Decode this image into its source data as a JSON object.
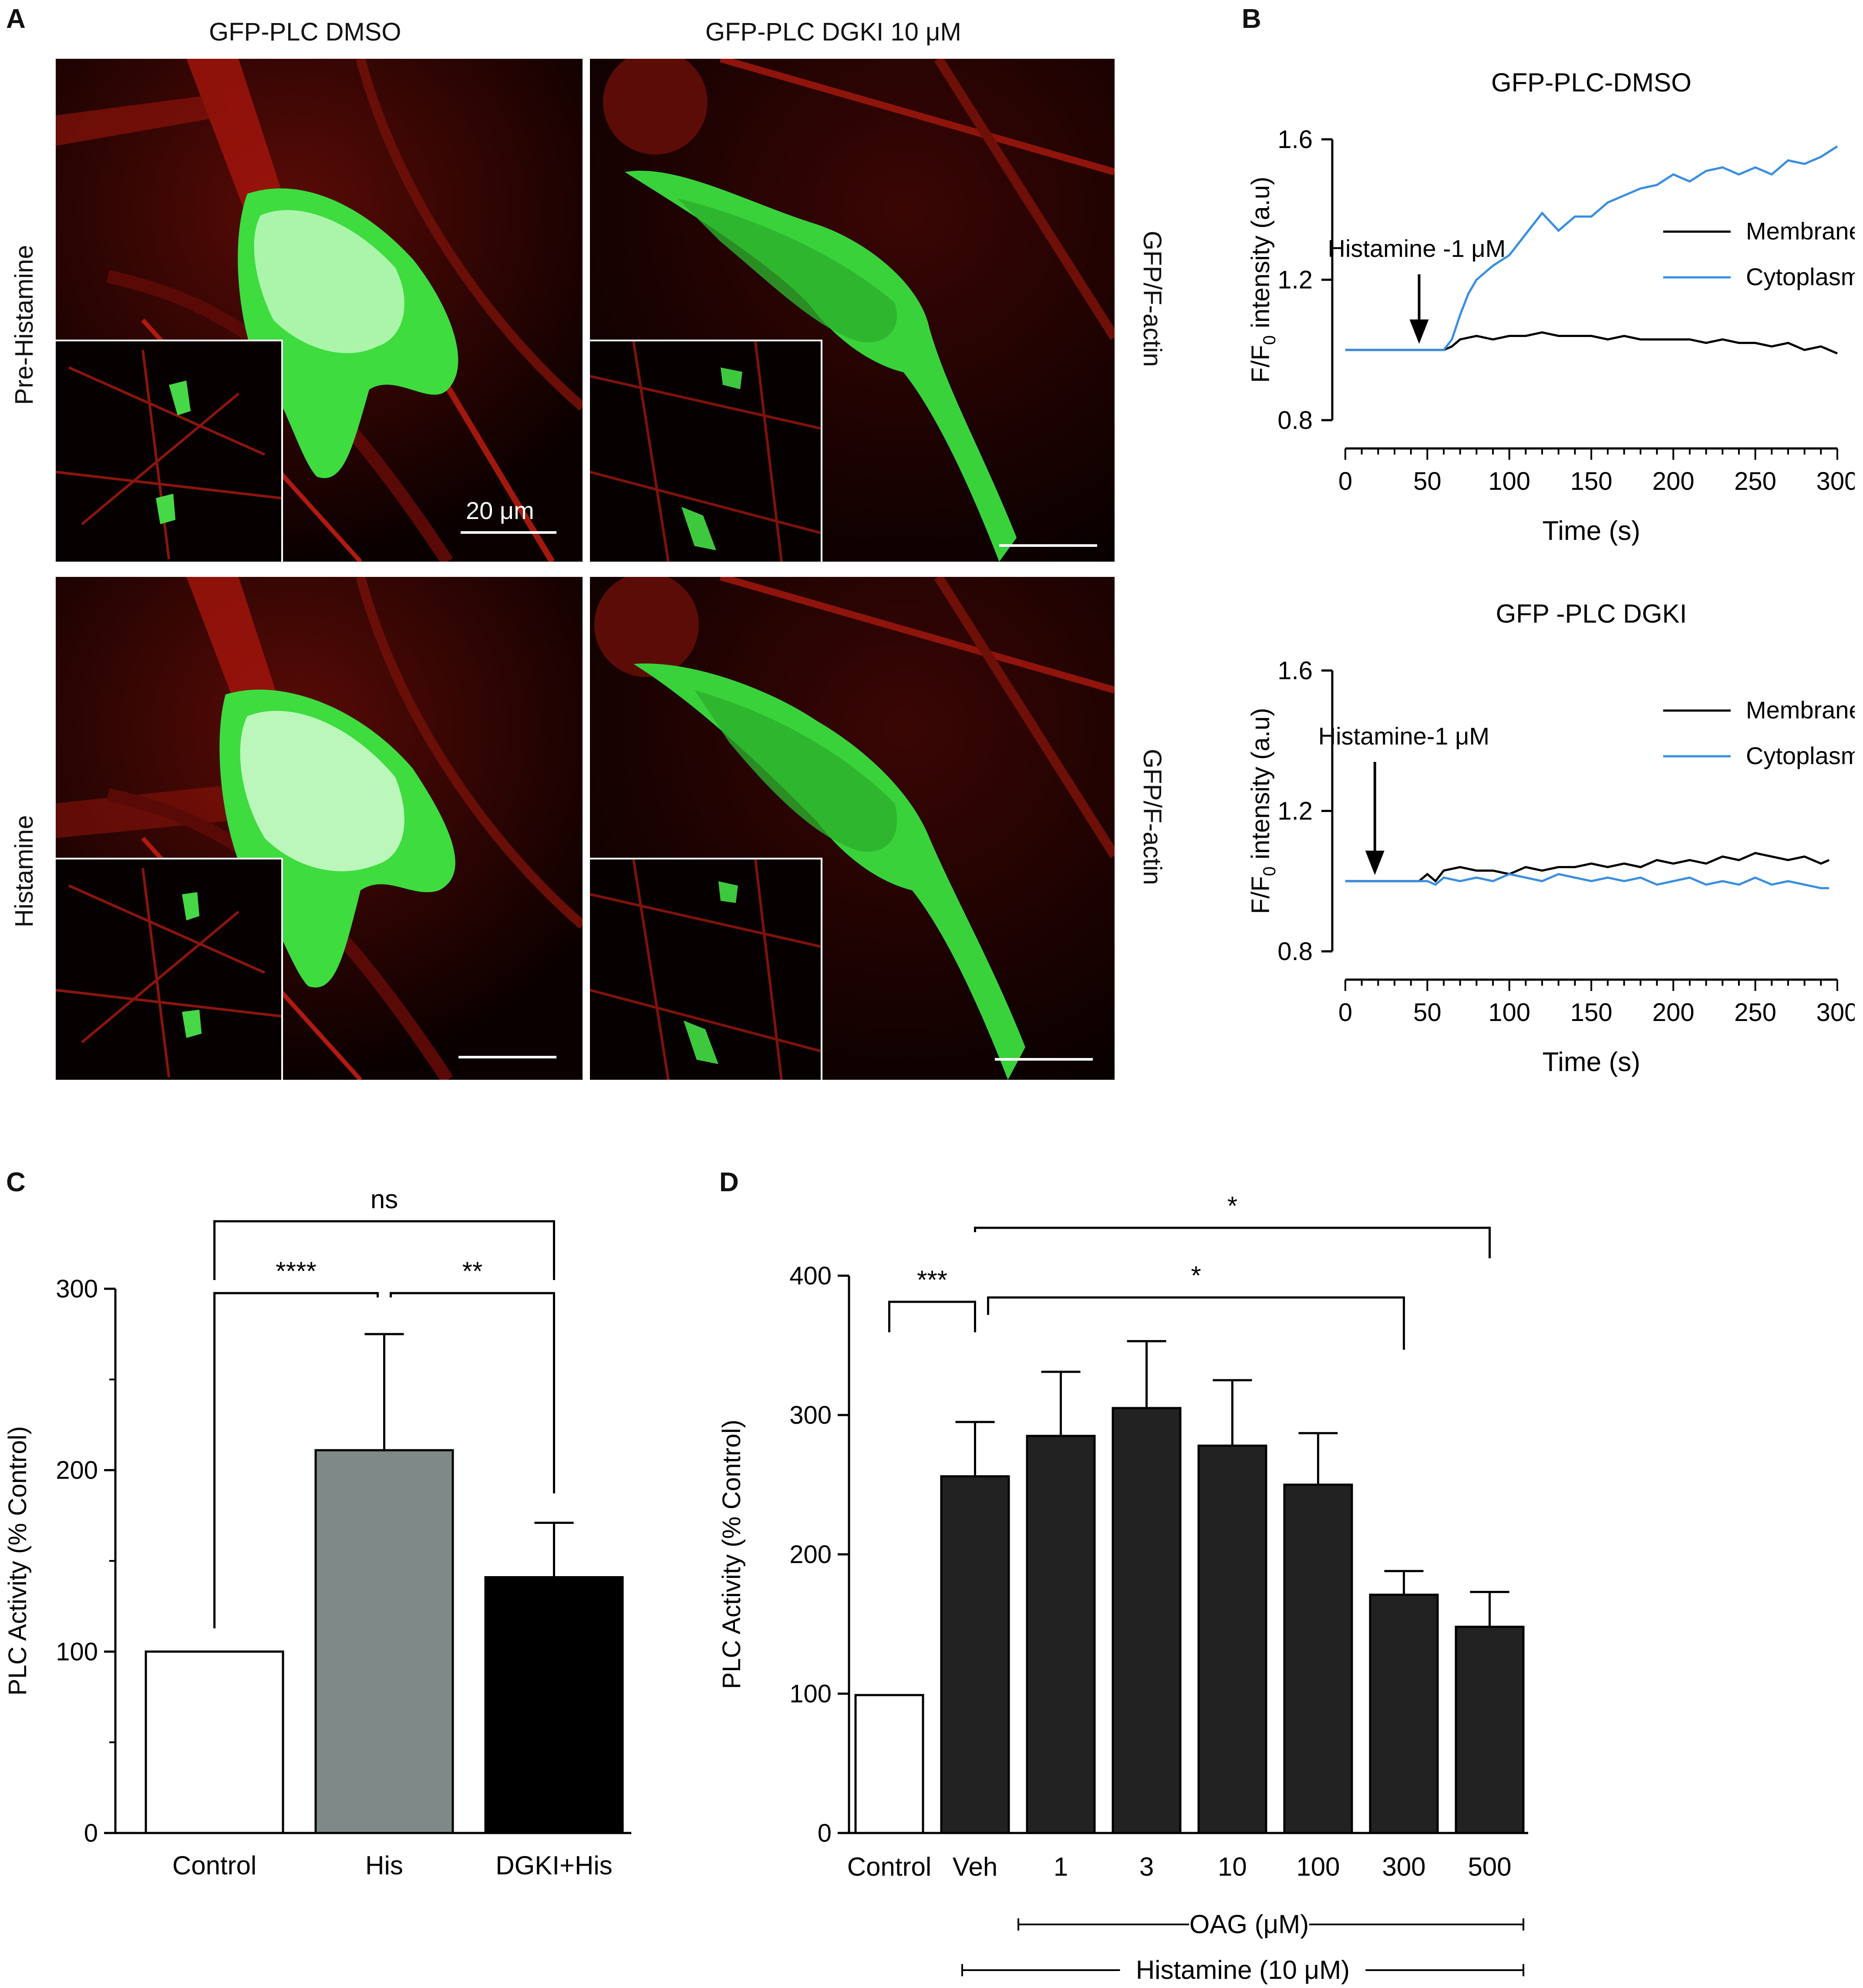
{
  "panels": {
    "a": {
      "letter": "A",
      "col_titles": [
        "GFP-PLC DMSO",
        "GFP-PLC DGKI 10 μM"
      ],
      "row_labels": [
        "Pre-Histamine",
        "Histamine"
      ],
      "side_labels": [
        "GFP/F-actin",
        "GFP/F-actin"
      ],
      "scale_label": "20 μm"
    },
    "b": {
      "letter": "B"
    },
    "c": {
      "letter": "C"
    },
    "d": {
      "letter": "D"
    }
  },
  "chart_data": [
    {
      "id": "B-top",
      "type": "line",
      "title": "GFP-PLC-DMSO",
      "xlabel": "Time (s)",
      "ylabel": "F/F0 intensity (a.u)",
      "xlim": [
        0,
        300
      ],
      "ylim": [
        0.8,
        1.6
      ],
      "xticks": [
        0,
        50,
        100,
        150,
        200,
        250,
        300
      ],
      "yticks": [
        0.8,
        1.2,
        1.6
      ],
      "ytick_labels": [
        "0.8",
        "1.2",
        "1.6"
      ],
      "legend_position": "right",
      "annotation": {
        "text": "Histamine -1 μM",
        "x": 45
      },
      "series": [
        {
          "name": "Membrane",
          "color": "#000000",
          "x": [
            0,
            10,
            20,
            30,
            40,
            50,
            60,
            65,
            70,
            80,
            90,
            100,
            110,
            120,
            130,
            140,
            150,
            160,
            170,
            180,
            190,
            200,
            210,
            220,
            230,
            240,
            250,
            260,
            270,
            280,
            290,
            300
          ],
          "y": [
            1.0,
            1.0,
            1.0,
            1.0,
            1.0,
            1.0,
            1.0,
            1.01,
            1.03,
            1.04,
            1.03,
            1.04,
            1.04,
            1.05,
            1.04,
            1.04,
            1.04,
            1.03,
            1.04,
            1.03,
            1.03,
            1.03,
            1.03,
            1.02,
            1.03,
            1.02,
            1.02,
            1.01,
            1.02,
            1.0,
            1.01,
            0.99
          ]
        },
        {
          "name": "Cytoplasm",
          "color": "#3a8ee0",
          "x": [
            0,
            10,
            20,
            30,
            40,
            50,
            60,
            65,
            70,
            75,
            80,
            85,
            90,
            100,
            110,
            120,
            130,
            140,
            150,
            160,
            170,
            180,
            190,
            200,
            210,
            220,
            230,
            240,
            250,
            260,
            270,
            280,
            290,
            300
          ],
          "y": [
            1.0,
            1.0,
            1.0,
            1.0,
            1.0,
            1.0,
            1.0,
            1.03,
            1.1,
            1.16,
            1.2,
            1.22,
            1.24,
            1.27,
            1.33,
            1.39,
            1.34,
            1.38,
            1.38,
            1.42,
            1.44,
            1.46,
            1.47,
            1.5,
            1.48,
            1.51,
            1.52,
            1.5,
            1.52,
            1.5,
            1.54,
            1.53,
            1.55,
            1.58
          ]
        }
      ]
    },
    {
      "id": "B-bottom",
      "type": "line",
      "title": "GFP -PLC DGKI",
      "xlabel": "Time (s)",
      "ylabel": "F/F0 intensity (a.u)",
      "xlim": [
        0,
        300
      ],
      "ylim": [
        0.8,
        1.6
      ],
      "xticks": [
        0,
        50,
        100,
        150,
        200,
        250,
        300
      ],
      "yticks": [
        0.8,
        1.2,
        1.6
      ],
      "ytick_labels": [
        "0.8",
        "1.2",
        "1.6"
      ],
      "legend_position": "right",
      "annotation": {
        "text": "Histamine-1 μM",
        "x": 18
      },
      "series": [
        {
          "name": "Membrane",
          "color": "#000000",
          "x": [
            0,
            10,
            20,
            30,
            40,
            45,
            50,
            55,
            60,
            70,
            80,
            90,
            100,
            110,
            120,
            130,
            140,
            150,
            160,
            170,
            180,
            190,
            200,
            210,
            220,
            230,
            240,
            250,
            260,
            270,
            280,
            290,
            295
          ],
          "y": [
            1.0,
            1.0,
            1.0,
            1.0,
            1.0,
            1.0,
            1.02,
            1.0,
            1.03,
            1.04,
            1.03,
            1.03,
            1.02,
            1.04,
            1.03,
            1.04,
            1.04,
            1.05,
            1.04,
            1.05,
            1.04,
            1.06,
            1.05,
            1.06,
            1.05,
            1.07,
            1.06,
            1.08,
            1.07,
            1.06,
            1.07,
            1.05,
            1.06
          ]
        },
        {
          "name": "Cytoplasm",
          "color": "#3a8ee0",
          "x": [
            0,
            10,
            20,
            30,
            40,
            50,
            55,
            60,
            70,
            80,
            90,
            100,
            110,
            120,
            130,
            140,
            150,
            160,
            170,
            180,
            190,
            200,
            210,
            220,
            230,
            240,
            250,
            260,
            270,
            280,
            290,
            295
          ],
          "y": [
            1.0,
            1.0,
            1.0,
            1.0,
            1.0,
            1.0,
            0.99,
            1.01,
            1.0,
            1.01,
            1.0,
            1.02,
            1.01,
            1.0,
            1.02,
            1.01,
            1.0,
            1.01,
            1.0,
            1.01,
            0.99,
            1.0,
            1.01,
            0.99,
            1.0,
            0.99,
            1.01,
            0.99,
            1.0,
            0.99,
            0.98,
            0.98
          ]
        }
      ]
    },
    {
      "id": "C",
      "type": "bar",
      "ylabel": "PLC Activity (% Control)",
      "ylim": [
        0,
        300
      ],
      "yticks": [
        0,
        100,
        200,
        300
      ],
      "categories": [
        "Control",
        "His",
        "DGKI+His"
      ],
      "values": [
        100,
        211,
        141
      ],
      "errors": [
        0,
        64,
        30
      ],
      "colors": [
        "#ffffff",
        "#7f8a88",
        "#000000"
      ],
      "significance": [
        {
          "label": "****",
          "from": 0,
          "to": 1
        },
        {
          "label": "**",
          "from": 1,
          "to": 2
        },
        {
          "label": "ns",
          "from": 0,
          "to": 2
        }
      ]
    },
    {
      "id": "D",
      "type": "bar",
      "ylabel": "PLC Activity (% Control)",
      "ylim": [
        0,
        400
      ],
      "yticks": [
        0,
        100,
        200,
        300,
        400
      ],
      "categories": [
        "Control",
        "Veh",
        "1",
        "3",
        "10",
        "100",
        "300",
        "500"
      ],
      "values": [
        99,
        256,
        285,
        305,
        278,
        250,
        171,
        148
      ],
      "errors": [
        0,
        39,
        46,
        48,
        47,
        37,
        17,
        25
      ],
      "colors": [
        "#ffffff",
        "#222222",
        "#222222",
        "#222222",
        "#222222",
        "#222222",
        "#222222",
        "#222222"
      ],
      "significance": [
        {
          "label": "***",
          "from": 0,
          "to": 1
        },
        {
          "label": "*",
          "from": 1,
          "to": 6
        },
        {
          "label": "*",
          "from": 1,
          "to": 7
        }
      ],
      "group_labels": [
        {
          "text": "OAG (μM)",
          "from": 2,
          "to": 7
        },
        {
          "text": "Histamine (10 μM)",
          "from": 1,
          "to": 7
        }
      ]
    }
  ]
}
